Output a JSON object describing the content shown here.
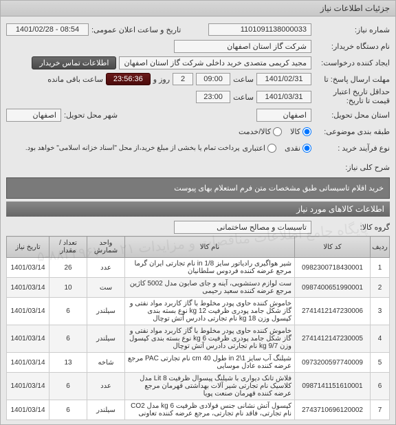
{
  "header": {
    "title": "جزئیات اطلاعات نیاز"
  },
  "form": {
    "need_no_label": "شماره نیاز:",
    "need_no": "1101091138000033",
    "announce_label": "تاریخ و ساعت اعلان عمومی:",
    "announce_val": "1401/02/28 - 08:54",
    "buyer_label": "نام دستگاه خریدار:",
    "buyer_val": "شرکت گاز استان اصفهان",
    "requester_label": "ایجاد کننده درخواست:",
    "requester_val": "مجید کریمی متصدی خرید داخلی شرکت گاز استان اصفهان",
    "contact_btn": "اطلاعات تماس خریدار",
    "deadline_label": "مهلت ارسال پاسخ: تا",
    "deadline_date": "1401/02/31",
    "time_label": "ساعت",
    "deadline_time": "09:00",
    "days_left_val": "2",
    "days_left_suffix": "روز و",
    "countdown": "23:56:36",
    "remaining_suffix": "ساعت باقی مانده",
    "validity_label": "حداقل تاریخ اعتبار",
    "validity_sub": "قیمت تا تاریخ:",
    "validity_date": "1401/03/31",
    "validity_time": "23:00",
    "trans_loc_label": "استان محل تحویل:",
    "trans_loc_val": "اصفهان",
    "trans_city_label": "شهر محل تحویل:",
    "trans_city_val": "اصفهان",
    "classify_label": "طبقه بندی موضوعی:",
    "radio_goods": "کالا",
    "radio_service": "کالا/خدمت",
    "process_label": "نوع فرآیند خرید :",
    "radio_cash": "نقدی",
    "radio_credit": "اعتباری",
    "credit_note": "پرداخت تمام یا بخشی از مبلغ خرید،از محل \"اسناد خزانه اسلامی\" خواهد بود.",
    "desc_label": "شرح کلی نیاز:",
    "desc_text": "خرید اقلام تاسیساتی طبق مشخصات متن فرم استعلام بهای پیوست",
    "items_header": "اطلاعات کالاهای مورد نیاز",
    "group_label": "گروه کالا:",
    "group_val": "تاسیسات و مصالح ساختمانی"
  },
  "table": {
    "cols": {
      "row": "ردیف",
      "code": "کد کالا",
      "name": "نام کالا",
      "unit": "واحد شمارش",
      "qty": "تعداد / مقدار",
      "date": "تاریخ نیاز"
    },
    "rows": [
      {
        "n": "1",
        "code": "0982300718430001",
        "name": "شیر هواگیری رادیاتور سایز in 1/8 نام تجارتی ایران گرما مرجع عرضه کننده فردوس سلطانیان",
        "unit": "عدد",
        "qty": "26",
        "date": "1401/03/14"
      },
      {
        "n": "2",
        "code": "0987400651990001",
        "name": "ست لوازم دستشویی، آینه و جای صابون مدل 5002 کاژین مرجع عرضه کننده سعید رحیمی",
        "unit": "ست",
        "qty": "10",
        "date": "1401/03/14"
      },
      {
        "n": "3",
        "code": "2741412147230006",
        "name": "خاموش کننده حاوی پودر مخلوط با گاز کاربرد مواد نفتی و گاز شکل جامد پودری ظرفیت 12 kg نوع بسته بندی کپسول وزن 18 kg نام تجارتی دادرس آتش توچال",
        "unit": "سیلندر",
        "qty": "6",
        "date": "1401/03/14"
      },
      {
        "n": "4",
        "code": "2741412147230005",
        "name": "خاموش کننده حاوی پودر مخلوط با گاز کاربرد مواد نفتی و گاز شکل جامد پودری ظرفیت 6 kg نوع بسته بندی کپسول وزن 9/7 kg نام تجارتی دادرس آتش توچال",
        "unit": "سیلندر",
        "qty": "6",
        "date": "1401/03/14"
      },
      {
        "n": "5",
        "code": "0973200597740009",
        "name": "شیلنگ آب سایز 1\\2 in طول cm 40 نام تجارتی PAC مرجع عرضه کننده عادل موسایی",
        "unit": "شاخه",
        "qty": "13",
        "date": "1401/03/14"
      },
      {
        "n": "6",
        "code": "0987141151610001",
        "name": "فلاش تانک دیواری با شیلنگ پیسوال ظرفیت Lit 8 مدل کلاسیک نام تجارتی شیر آلات بهداشتی قهرمان مرجع عرضه کننده قهرمان صنعت پویا",
        "unit": "عدد",
        "qty": "6",
        "date": "1401/03/14"
      },
      {
        "n": "7",
        "code": "2743710696120002",
        "name": "کپسول آتش نشانی جنس فولادی ظرفیت 6 kg مدل CO2 نام تجارتی، فاقد نام تجارتی، مرجع عرضه کننده تعاونی",
        "unit": "سیلندر",
        "qty": "6",
        "date": "1401/03/14"
      }
    ]
  },
  "colors": {
    "header_bg_start": "#d8d8d8",
    "header_bg_end": "#c8c8c8",
    "btn_bg_start": "#6a6a6a",
    "btn_bg_end": "#4a4a4a",
    "countdown_bg_start": "#6a1a1a",
    "countdown_bg_end": "#4a0a0a",
    "section_bg_start": "#888",
    "section_bg_end": "#666",
    "desc_bg": "#7a7a7a",
    "th_bg_start": "#e0e0e0",
    "th_bg_end": "#c8c8c8"
  }
}
